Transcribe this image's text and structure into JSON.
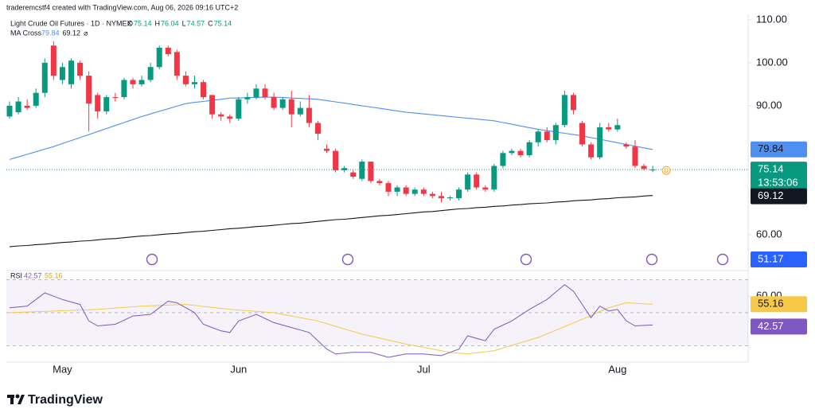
{
  "chart_data": {
    "type": "candlestick",
    "header": "traderemcstf4 created with TradingView.com, Aug 06, 2026 09:16 UTC+2",
    "title": "Light Crude Oil Futures · 1D · NYMEX",
    "legend_prefixes": [
      "O",
      "H",
      "L",
      "C"
    ],
    "indicator_name": "MA Cross",
    "indicator_icon": "⌀",
    "countdown": "13:53:06",
    "marker": "D",
    "logo": "TradingView",
    "up_color": "#089981",
    "down_color": "#f23645",
    "categories": [
      null,
      null,
      null,
      null,
      null,
      null,
      "May",
      null,
      null,
      null,
      null,
      null,
      null,
      null,
      null,
      null,
      null,
      null,
      null,
      null,
      null,
      null,
      null,
      null,
      null,
      null,
      "Jun",
      null,
      null,
      null,
      null,
      null,
      null,
      null,
      null,
      null,
      null,
      null,
      null,
      null,
      null,
      null,
      null,
      null,
      null,
      null,
      null,
      "Jul",
      null,
      null,
      null,
      null,
      null,
      null,
      null,
      null,
      null,
      null,
      null,
      null,
      null,
      null,
      null,
      null,
      null,
      null,
      null,
      null,
      null,
      "Aug",
      null,
      null,
      null,
      null
    ],
    "open": [
      87.5,
      88.5,
      90,
      90,
      93,
      104,
      96,
      95,
      100,
      97,
      92.5,
      88.7,
      92,
      92,
      96,
      95,
      96,
      99,
      103.5,
      102.5,
      97,
      95,
      95.5,
      92.5,
      88,
      87.5,
      87,
      91.5,
      92,
      94,
      92,
      89.5,
      91.5,
      88,
      89.5,
      86,
      80,
      79.5,
      75,
      74.5,
      73,
      77,
      72.5,
      72,
      70,
      71,
      69.5,
      70.5,
      69.5,
      69,
      68.5,
      68.5,
      70.5,
      74,
      71,
      70.5,
      76,
      79,
      79.5,
      78.5,
      81.5,
      84,
      82,
      85.5,
      92.5,
      86,
      81,
      78,
      85,
      84.5,
      81,
      80.5,
      76,
      75.14
    ],
    "high": [
      91,
      92,
      91.5,
      94,
      101,
      105,
      100,
      101,
      100.5,
      98,
      93,
      92.5,
      93,
      96.5,
      96.5,
      97,
      100,
      104,
      104,
      103,
      98,
      97,
      96,
      92.5,
      88.5,
      88,
      92,
      93,
      95,
      95,
      93,
      92,
      93.5,
      91,
      92.5,
      86.5,
      81,
      80,
      76,
      75,
      77.5,
      77,
      73,
      72.5,
      71.5,
      71.5,
      71,
      71,
      70,
      70,
      69,
      71,
      74.5,
      74.5,
      71.5,
      76.5,
      79.5,
      80,
      80,
      82,
      84.5,
      85,
      86,
      93.5,
      93,
      86.5,
      81.5,
      86,
      86,
      87,
      81.5,
      82,
      76.5,
      76.04
    ],
    "low": [
      87,
      88,
      89,
      89.5,
      92,
      96,
      95,
      94,
      96,
      84,
      87,
      88,
      91,
      91.5,
      94,
      94.5,
      95.5,
      98.5,
      101.5,
      96,
      94.5,
      94,
      91.5,
      87,
      86.5,
      86,
      86.5,
      90.5,
      91.5,
      91.5,
      89,
      89,
      85,
      87.5,
      85,
      82,
      79,
      74.5,
      74.5,
      73,
      72.5,
      72,
      71.5,
      69,
      69,
      69,
      69,
      69,
      68.5,
      67.5,
      68,
      68,
      70,
      70.5,
      70,
      70,
      75.5,
      78.5,
      78,
      78,
      80.5,
      81.5,
      81,
      85,
      88,
      80.5,
      77.5,
      77.5,
      84,
      84,
      80,
      75.5,
      75,
      74.57
    ],
    "close": [
      90,
      91,
      89.5,
      93,
      100,
      97,
      99,
      100.5,
      97,
      90.5,
      88.7,
      92,
      91.8,
      96,
      95,
      96,
      99,
      103.5,
      102,
      97,
      95,
      95.5,
      92,
      88,
      87.5,
      87,
      91.5,
      92,
      94,
      92,
      89.5,
      91.5,
      88,
      89.5,
      86,
      83.5,
      79.5,
      75,
      75.5,
      73.5,
      77,
      72.5,
      72,
      70,
      71,
      69.5,
      70.5,
      69.5,
      69,
      68.5,
      68.7,
      70.5,
      74,
      71,
      70.5,
      76,
      79,
      79.5,
      78.5,
      81.5,
      84,
      82,
      85.5,
      92.5,
      89,
      81,
      78,
      85,
      84.5,
      85.5,
      80.5,
      76,
      75.3,
      75.14
    ],
    "series": [
      {
        "color": "#4e8ff0",
        "values": [
          77.5,
          78.1,
          78.7,
          79.3,
          79.9,
          80.5,
          81.2,
          81.9,
          82.6,
          83.3,
          84,
          84.7,
          85.4,
          86.1,
          86.8,
          87.5,
          88.1,
          88.7,
          89.3,
          89.9,
          90.5,
          90.8,
          91,
          91.3,
          91.5,
          91.8,
          91.8,
          91.9,
          91.9,
          92,
          92,
          91.9,
          91.8,
          91.7,
          91.6,
          91.5,
          91.2,
          90.9,
          90.6,
          90.3,
          90,
          89.7,
          89.4,
          89.1,
          88.8,
          88.5,
          88.3,
          88.1,
          87.9,
          87.7,
          87.5,
          87.3,
          87.1,
          86.9,
          86.7,
          86.5,
          86.1,
          85.7,
          85.3,
          84.9,
          84.5,
          84.2,
          83.9,
          83.6,
          83.3,
          83,
          82.6,
          82.2,
          81.8,
          81.4,
          81,
          80.6,
          80.2,
          79.84
        ]
      },
      {
        "color": "#131722",
        "values": [
          57.2,
          57.4,
          57.5,
          57.7,
          57.8,
          58,
          58.2,
          58.3,
          58.5,
          58.6,
          58.8,
          59,
          59.1,
          59.3,
          59.5,
          59.7,
          59.8,
          60,
          60.2,
          60.3,
          60.5,
          60.7,
          60.8,
          61,
          61.2,
          61.4,
          61.5,
          61.7,
          61.9,
          62,
          62.2,
          62.4,
          62.6,
          62.7,
          62.9,
          63.1,
          63.3,
          63.5,
          63.6,
          63.8,
          64,
          64.2,
          64.4,
          64.5,
          64.7,
          64.9,
          65.1,
          65.3,
          65.4,
          65.6,
          65.8,
          66,
          66.1,
          66.3,
          66.4,
          66.6,
          66.7,
          66.9,
          67,
          67.2,
          67.3,
          67.4,
          67.6,
          67.7,
          67.9,
          68,
          68.1,
          68.3,
          68.4,
          68.6,
          68.7,
          68.8,
          69,
          69.12
        ]
      }
    ],
    "extra_badge": {
      "value": 51.17,
      "color": "#2962ff"
    },
    "ylim": [
      52.4,
      114.6
    ],
    "yticks": [
      {
        "value": 110,
        "label": "110.00"
      },
      {
        "value": 100,
        "label": "100.00"
      },
      {
        "value": 90,
        "label": "90.00"
      },
      {
        "value": 60,
        "label": "60.00"
      }
    ],
    "grid": false,
    "rsi": {
      "name": "RSI",
      "color": "#7e57c2",
      "ma_color": "#f7c948",
      "values": [
        53,
        53.5,
        54,
        58,
        62,
        60,
        58,
        56.5,
        55,
        45,
        42,
        42.5,
        43,
        45.5,
        48,
        48.5,
        49,
        53,
        57,
        56,
        53,
        50,
        43,
        41,
        39,
        38,
        45,
        47,
        49,
        46.5,
        44,
        42.5,
        41,
        39.5,
        38,
        33,
        28,
        25,
        25.5,
        26,
        26,
        26,
        24.5,
        23,
        24,
        25,
        25,
        25,
        24.5,
        24,
        26,
        28,
        36,
        34.5,
        33,
        40,
        42.5,
        45,
        48.5,
        52,
        55,
        58,
        62.5,
        67,
        63,
        55,
        47,
        54,
        51,
        52,
        45,
        42,
        42.3,
        42.57
      ],
      "ma_values": [
        50,
        50.2,
        50.4,
        50.6,
        50.8,
        51,
        51.2,
        51.4,
        51.6,
        51.8,
        52,
        52.4,
        52.8,
        53.2,
        53.6,
        54,
        54.2,
        54.4,
        54.6,
        54.8,
        55,
        54.4,
        53.8,
        53.2,
        52.6,
        52,
        51.6,
        51.2,
        50.8,
        50.4,
        50,
        49,
        48,
        47,
        46,
        45,
        43.4,
        41.8,
        40.2,
        38.6,
        37,
        35.8,
        34.6,
        33.4,
        32.2,
        31,
        30,
        29,
        28,
        27,
        26,
        25.5,
        25,
        25.7,
        26.3,
        27,
        28.6,
        30.2,
        31.8,
        33.4,
        35,
        37.2,
        39.4,
        41.6,
        43.8,
        46,
        48.3,
        50.7,
        53,
        54.5,
        56,
        55.7,
        55.4,
        55.16
      ],
      "ylim": [
        20.1,
        73.1
      ],
      "yticks": [
        {
          "value": 60,
          "label": "60.00"
        }
      ],
      "levels": [
        70,
        50,
        30
      ]
    }
  }
}
